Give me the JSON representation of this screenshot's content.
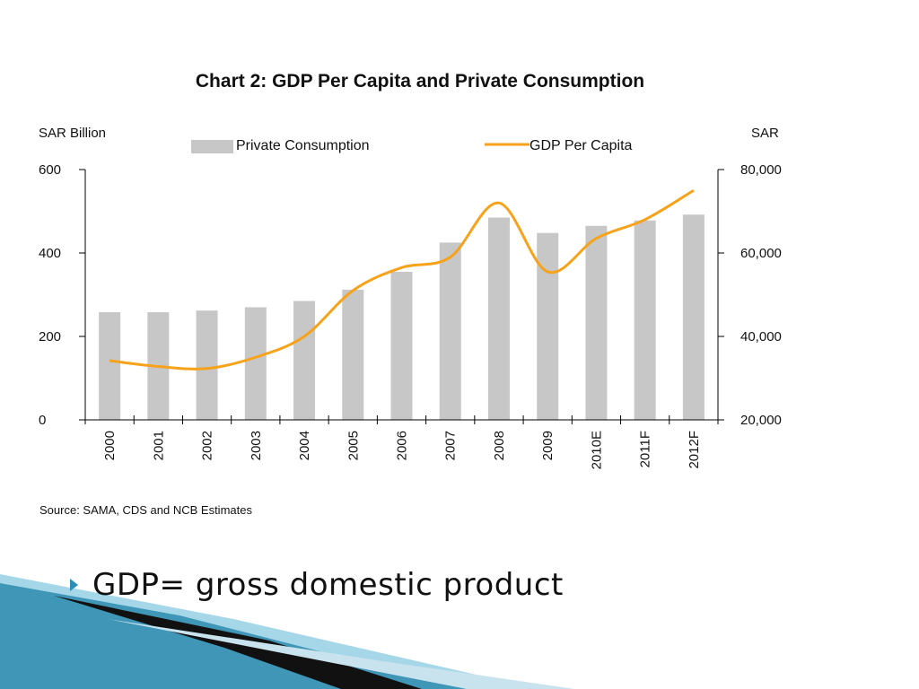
{
  "slide": {
    "bullet_text": "GDP= gross domestic product"
  },
  "chart_data": {
    "type": "bar",
    "title": "Chart 2: GDP Per Capita and Private Consumption",
    "left_axis_label": "SAR Billion",
    "right_axis_label": "SAR",
    "categories": [
      "2000",
      "2001",
      "2002",
      "2003",
      "2004",
      "2005",
      "2006",
      "2007",
      "2008",
      "2009",
      "2010E",
      "2011F",
      "2012F"
    ],
    "series": [
      {
        "name": "Private Consumption",
        "type": "bar",
        "axis": "left",
        "color": "#c7c7c7",
        "values": [
          258,
          258,
          262,
          270,
          285,
          312,
          355,
          425,
          485,
          448,
          465,
          478,
          492
        ]
      },
      {
        "name": "GDP Per Capita",
        "type": "line",
        "axis": "right",
        "color": "#f7a21b",
        "values": [
          34200,
          32800,
          32300,
          35000,
          40000,
          51000,
          56500,
          59000,
          72000,
          55500,
          63500,
          68000,
          75000
        ]
      }
    ],
    "ylim_left": [
      0,
      600
    ],
    "yticks_left": [
      0,
      200,
      400,
      600
    ],
    "ylim_right": [
      20000,
      80000
    ],
    "yticks_right": [
      20000,
      40000,
      60000,
      80000
    ],
    "yticks_right_labels": [
      "20,000",
      "40,000",
      "60,000",
      "80,000"
    ],
    "grid": false,
    "legend": "top",
    "source": "Source: SAMA, CDS and NCB Estimates"
  }
}
